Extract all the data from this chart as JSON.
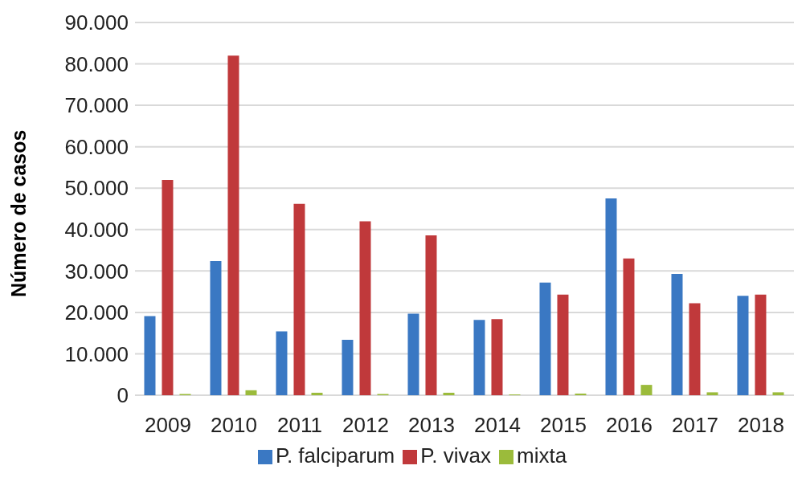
{
  "chart_data": {
    "type": "bar",
    "ylabel": "Número de casos",
    "categories": [
      "2009",
      "2010",
      "2011",
      "2012",
      "2013",
      "2014",
      "2015",
      "2016",
      "2017",
      "2018"
    ],
    "series": [
      {
        "name": "P. falciparum",
        "color": "#3a78c3",
        "values": [
          19100,
          32400,
          15400,
          13400,
          19700,
          18200,
          27200,
          47500,
          29300,
          24000
        ]
      },
      {
        "name": "P. vivax",
        "color": "#c0393b",
        "values": [
          52000,
          82000,
          46200,
          42000,
          38600,
          18400,
          24300,
          33000,
          22200,
          24300
        ]
      },
      {
        "name": "mixta",
        "color": "#9bbb3b",
        "values": [
          300,
          1200,
          600,
          300,
          600,
          200,
          400,
          2500,
          700,
          700
        ]
      }
    ],
    "ylim": [
      0,
      90000
    ],
    "yticks": [
      {
        "value": 0,
        "label": "0"
      },
      {
        "value": 10000,
        "label": "10.000"
      },
      {
        "value": 20000,
        "label": "20.000"
      },
      {
        "value": 30000,
        "label": "30.000"
      },
      {
        "value": 40000,
        "label": "40.000"
      },
      {
        "value": 50000,
        "label": "50.000"
      },
      {
        "value": 60000,
        "label": "60.000"
      },
      {
        "value": 70000,
        "label": "70.000"
      },
      {
        "value": 80000,
        "label": "80.000"
      },
      {
        "value": 90000,
        "label": "90.000"
      }
    ],
    "grid": "y",
    "legend": "bottom"
  }
}
